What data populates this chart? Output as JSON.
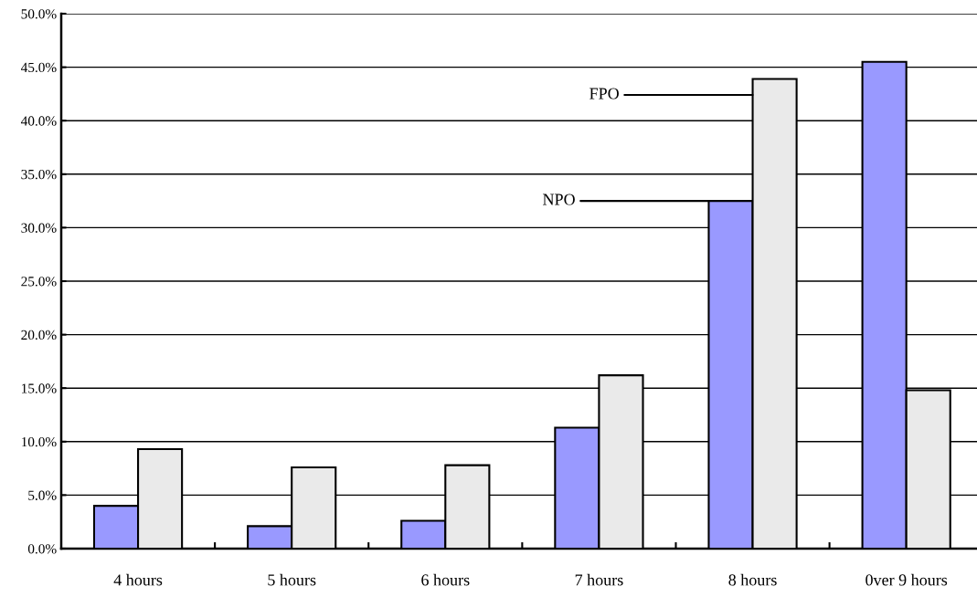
{
  "chart_data": {
    "type": "bar",
    "categories": [
      "4 hours",
      "5 hours",
      "6 hours",
      "7 hours",
      "8 hours",
      "0ver 9 hours"
    ],
    "series": [
      {
        "name": "NPO",
        "color": "#9999ff",
        "values": [
          4.0,
          2.1,
          2.6,
          11.3,
          32.5,
          45.5
        ]
      },
      {
        "name": "FPO",
        "color": "#eaeaea",
        "values": [
          9.3,
          7.6,
          7.8,
          16.2,
          43.9,
          14.8
        ]
      }
    ],
    "ylim": [
      0,
      50
    ],
    "yticks": [
      {
        "value": 0,
        "label": "0.0%"
      },
      {
        "value": 5,
        "label": "5.0%"
      },
      {
        "value": 10,
        "label": "10.0%"
      },
      {
        "value": 15,
        "label": "15.0%"
      },
      {
        "value": 20,
        "label": "20.0%"
      },
      {
        "value": 25,
        "label": "25.0%"
      },
      {
        "value": 30,
        "label": "30.0%"
      },
      {
        "value": 35,
        "label": "35.0%"
      },
      {
        "value": 40,
        "label": "40.0%"
      },
      {
        "value": 45,
        "label": "45.0%"
      },
      {
        "value": 50,
        "label": "50.0%"
      }
    ],
    "grid": "y",
    "legend": false
  }
}
